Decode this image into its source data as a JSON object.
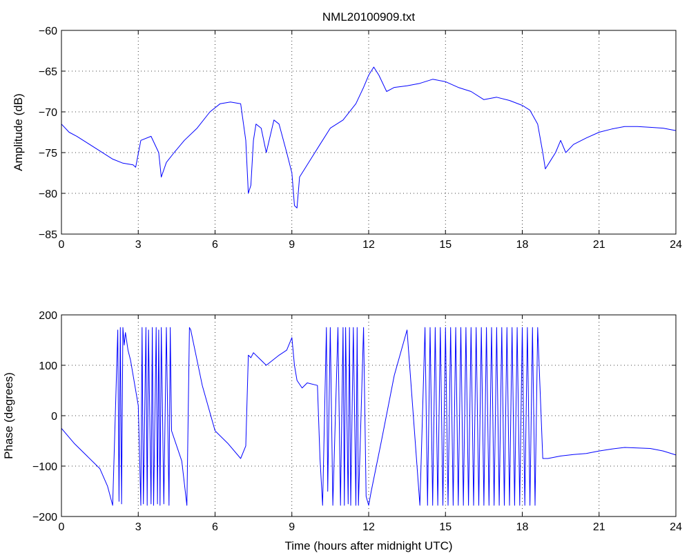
{
  "title": "NML20100909.txt",
  "chart_data": [
    {
      "type": "line",
      "title": "NML20100909.txt",
      "xlabel": "",
      "ylabel": "Amplitude (dB)",
      "xlim": [
        0,
        24
      ],
      "ylim": [
        -85,
        -60
      ],
      "xticks": [
        0,
        3,
        6,
        9,
        12,
        15,
        18,
        21,
        24
      ],
      "yticks": [
        -85,
        -80,
        -75,
        -70,
        -65,
        -60
      ],
      "xtick_labels": [
        "0",
        "3",
        "6",
        "9",
        "12",
        "15",
        "18",
        "21",
        "24"
      ],
      "ytick_labels": [
        "−85",
        "−80",
        "−75",
        "−70",
        "−65",
        "−60"
      ],
      "grid": true,
      "color": "#0000ff",
      "series": [
        {
          "x": [
            0,
            0.3,
            0.6,
            1.0,
            1.5,
            2.0,
            2.4,
            2.8,
            2.9,
            3.1,
            3.5,
            3.8,
            3.9,
            4.1,
            4.4,
            4.8,
            5.3,
            5.8,
            6.2,
            6.6,
            7.0,
            7.2,
            7.3,
            7.4,
            7.5,
            7.6,
            7.8,
            8.0,
            8.3,
            8.5,
            8.8,
            9.0,
            9.1,
            9.2,
            9.3,
            9.5,
            9.8,
            10.1,
            10.5,
            11.0,
            11.5,
            11.8,
            12.0,
            12.2,
            12.4,
            12.7,
            13.0,
            13.5,
            14.0,
            14.5,
            15.0,
            15.5,
            16.0,
            16.5,
            17.0,
            17.5,
            18.0,
            18.3,
            18.6,
            18.8,
            18.9,
            19.1,
            19.3,
            19.5,
            19.7,
            20.0,
            20.5,
            21.0,
            21.5,
            22.0,
            22.5,
            23.0,
            23.5,
            24.0
          ],
          "y": [
            -71.5,
            -72.5,
            -73.0,
            -73.8,
            -74.8,
            -75.8,
            -76.3,
            -76.5,
            -76.8,
            -73.5,
            -73.0,
            -75.0,
            -78.0,
            -76.2,
            -75.0,
            -73.5,
            -72.0,
            -70.0,
            -69.0,
            -68.8,
            -69.0,
            -73.5,
            -80.0,
            -79.0,
            -73.5,
            -71.5,
            -72.0,
            -75.0,
            -71.0,
            -71.5,
            -75.0,
            -77.5,
            -81.5,
            -81.8,
            -78.0,
            -77.0,
            -75.5,
            -74.0,
            -72.0,
            -71.0,
            -69.0,
            -67.0,
            -65.5,
            -64.5,
            -65.5,
            -67.5,
            -67.0,
            -66.8,
            -66.5,
            -66.0,
            -66.3,
            -67.0,
            -67.5,
            -68.5,
            -68.2,
            -68.6,
            -69.2,
            -69.8,
            -71.5,
            -75.0,
            -77.0,
            -76.0,
            -75.0,
            -73.5,
            -75.0,
            -74.0,
            -73.2,
            -72.5,
            -72.1,
            -71.8,
            -71.8,
            -71.9,
            -72.0,
            -72.3
          ]
        }
      ]
    },
    {
      "type": "line",
      "title": "",
      "xlabel": "Time (hours after midnight UTC)",
      "ylabel": "Phase (degrees)",
      "xlim": [
        0,
        24
      ],
      "ylim": [
        -200,
        200
      ],
      "xticks": [
        0,
        3,
        6,
        9,
        12,
        15,
        18,
        21,
        24
      ],
      "yticks": [
        -200,
        -100,
        0,
        100,
        200
      ],
      "xtick_labels": [
        "0",
        "3",
        "6",
        "9",
        "12",
        "15",
        "18",
        "21",
        "24"
      ],
      "ytick_labels": [
        "−200",
        "−100",
        "0",
        "100",
        "200"
      ],
      "grid": true,
      "color": "#0000ff",
      "series": [
        {
          "x": [
            0,
            0.5,
            1.0,
            1.5,
            1.8,
            2.0,
            2.2,
            2.25,
            2.3,
            2.35,
            2.4,
            2.45,
            2.5,
            2.6,
            2.7,
            3.0,
            3.1,
            3.15,
            3.2,
            3.3,
            3.35,
            3.4,
            3.5,
            3.55,
            3.6,
            3.7,
            3.75,
            3.8,
            3.85,
            3.9,
            4.0,
            4.1,
            4.2,
            4.25,
            4.3,
            4.7,
            4.9,
            5.0,
            5.05,
            5.5,
            6.0,
            6.5,
            7.0,
            7.2,
            7.3,
            7.4,
            7.5,
            8.0,
            8.5,
            8.8,
            9.0,
            9.1,
            9.2,
            9.4,
            9.6,
            10.0,
            10.1,
            10.2,
            10.35,
            10.4,
            10.5,
            10.6,
            10.8,
            10.9,
            11.0,
            11.05,
            11.1,
            11.2,
            11.25,
            11.3,
            11.4,
            11.5,
            11.55,
            11.6,
            11.8,
            11.9,
            12.0,
            12.1,
            12.5,
            13.0,
            13.5,
            14.0,
            14.2,
            14.3,
            14.4,
            14.5,
            14.6,
            14.7,
            14.8,
            14.9,
            15.0,
            15.1,
            15.2,
            15.3,
            15.4,
            15.5,
            15.6,
            15.7,
            15.8,
            15.9,
            16.0,
            16.1,
            16.2,
            16.3,
            16.4,
            16.5,
            16.6,
            16.7,
            16.8,
            16.9,
            17.0,
            17.1,
            17.2,
            17.3,
            17.4,
            17.5,
            17.6,
            17.7,
            17.8,
            17.9,
            18.0,
            18.1,
            18.2,
            18.3,
            18.4,
            18.5,
            18.6,
            18.8,
            19.0,
            19.5,
            20.0,
            20.5,
            21.0,
            21.5,
            22.0,
            22.5,
            23.0,
            23.5,
            24.0
          ],
          "y": [
            -25,
            -55,
            -80,
            -105,
            -140,
            -178,
            170,
            -170,
            175,
            -175,
            175,
            140,
            165,
            130,
            110,
            20,
            -178,
            175,
            -175,
            175,
            -178,
            170,
            -175,
            175,
            -178,
            175,
            -175,
            170,
            -178,
            175,
            -175,
            175,
            -178,
            175,
            -30,
            -90,
            -178,
            175,
            170,
            60,
            -30,
            -55,
            -85,
            -60,
            120,
            115,
            125,
            100,
            120,
            130,
            155,
            100,
            70,
            55,
            65,
            60,
            -85,
            -178,
            175,
            -150,
            175,
            -178,
            175,
            -178,
            175,
            -178,
            175,
            -175,
            175,
            -178,
            175,
            -178,
            175,
            -178,
            175,
            -160,
            -178,
            -150,
            -50,
            80,
            170,
            -178,
            175,
            -178,
            175,
            -178,
            175,
            -178,
            175,
            -178,
            175,
            -178,
            175,
            -178,
            175,
            -178,
            175,
            -178,
            175,
            -178,
            175,
            -178,
            175,
            -178,
            175,
            -178,
            175,
            -178,
            175,
            -178,
            175,
            -178,
            175,
            -178,
            175,
            -178,
            175,
            -178,
            175,
            -178,
            175,
            -178,
            175,
            -178,
            175,
            -178,
            175,
            -85,
            -85,
            -80,
            -77,
            -75,
            -70,
            -66,
            -63,
            -64,
            -65,
            -70,
            -78
          ]
        }
      ]
    }
  ]
}
